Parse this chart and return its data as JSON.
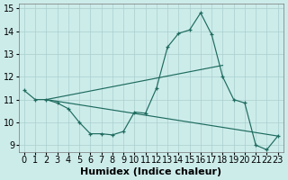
{
  "xlabel": "Humidex (Indice chaleur)",
  "bg_color": "#ccecea",
  "line_color": "#1e6b5e",
  "grid_color": "#aacece",
  "xlim_min": -0.5,
  "xlim_max": 23.5,
  "ylim_min": 8.7,
  "ylim_max": 15.2,
  "yticks": [
    9,
    10,
    11,
    12,
    13,
    14,
    15
  ],
  "xticks": [
    0,
    1,
    2,
    3,
    4,
    5,
    6,
    7,
    8,
    9,
    10,
    11,
    12,
    13,
    14,
    15,
    16,
    17,
    18,
    19,
    20,
    21,
    22,
    23
  ],
  "line1_x": [
    0,
    1,
    2,
    3,
    4,
    5,
    6,
    7,
    8,
    9,
    10,
    11,
    12,
    13,
    14,
    15,
    16,
    17,
    18,
    19,
    20,
    21,
    22,
    23
  ],
  "line1_y": [
    11.4,
    11.0,
    11.0,
    10.85,
    10.6,
    10.0,
    9.5,
    9.5,
    9.45,
    9.6,
    10.45,
    10.4,
    11.5,
    13.3,
    13.9,
    14.05,
    14.8,
    13.85,
    12.0,
    11.0,
    10.85,
    9.0,
    8.8,
    9.4
  ],
  "line2_x": [
    2,
    23
  ],
  "line2_y": [
    11.0,
    9.4
  ],
  "line3_x": [
    2,
    18
  ],
  "line3_y": [
    11.0,
    12.5
  ],
  "xlabel_fontsize": 8,
  "tick_fontsize": 7
}
